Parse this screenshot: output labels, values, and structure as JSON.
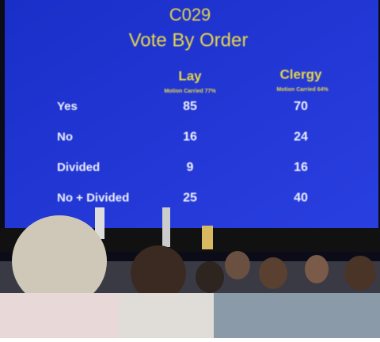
{
  "screen": {
    "code": "C029",
    "title": "Vote By Order",
    "table": {
      "columns": [
        {
          "name": "Lay",
          "note": "Motion Carried 77%"
        },
        {
          "name": "Clergy",
          "note": "Motion Carried 64%"
        }
      ],
      "rows": [
        [
          "Yes",
          85,
          70
        ],
        [
          "No",
          16,
          24
        ],
        [
          "Divided",
          9,
          16
        ],
        [
          "No + Divided",
          25,
          40
        ]
      ]
    }
  }
}
